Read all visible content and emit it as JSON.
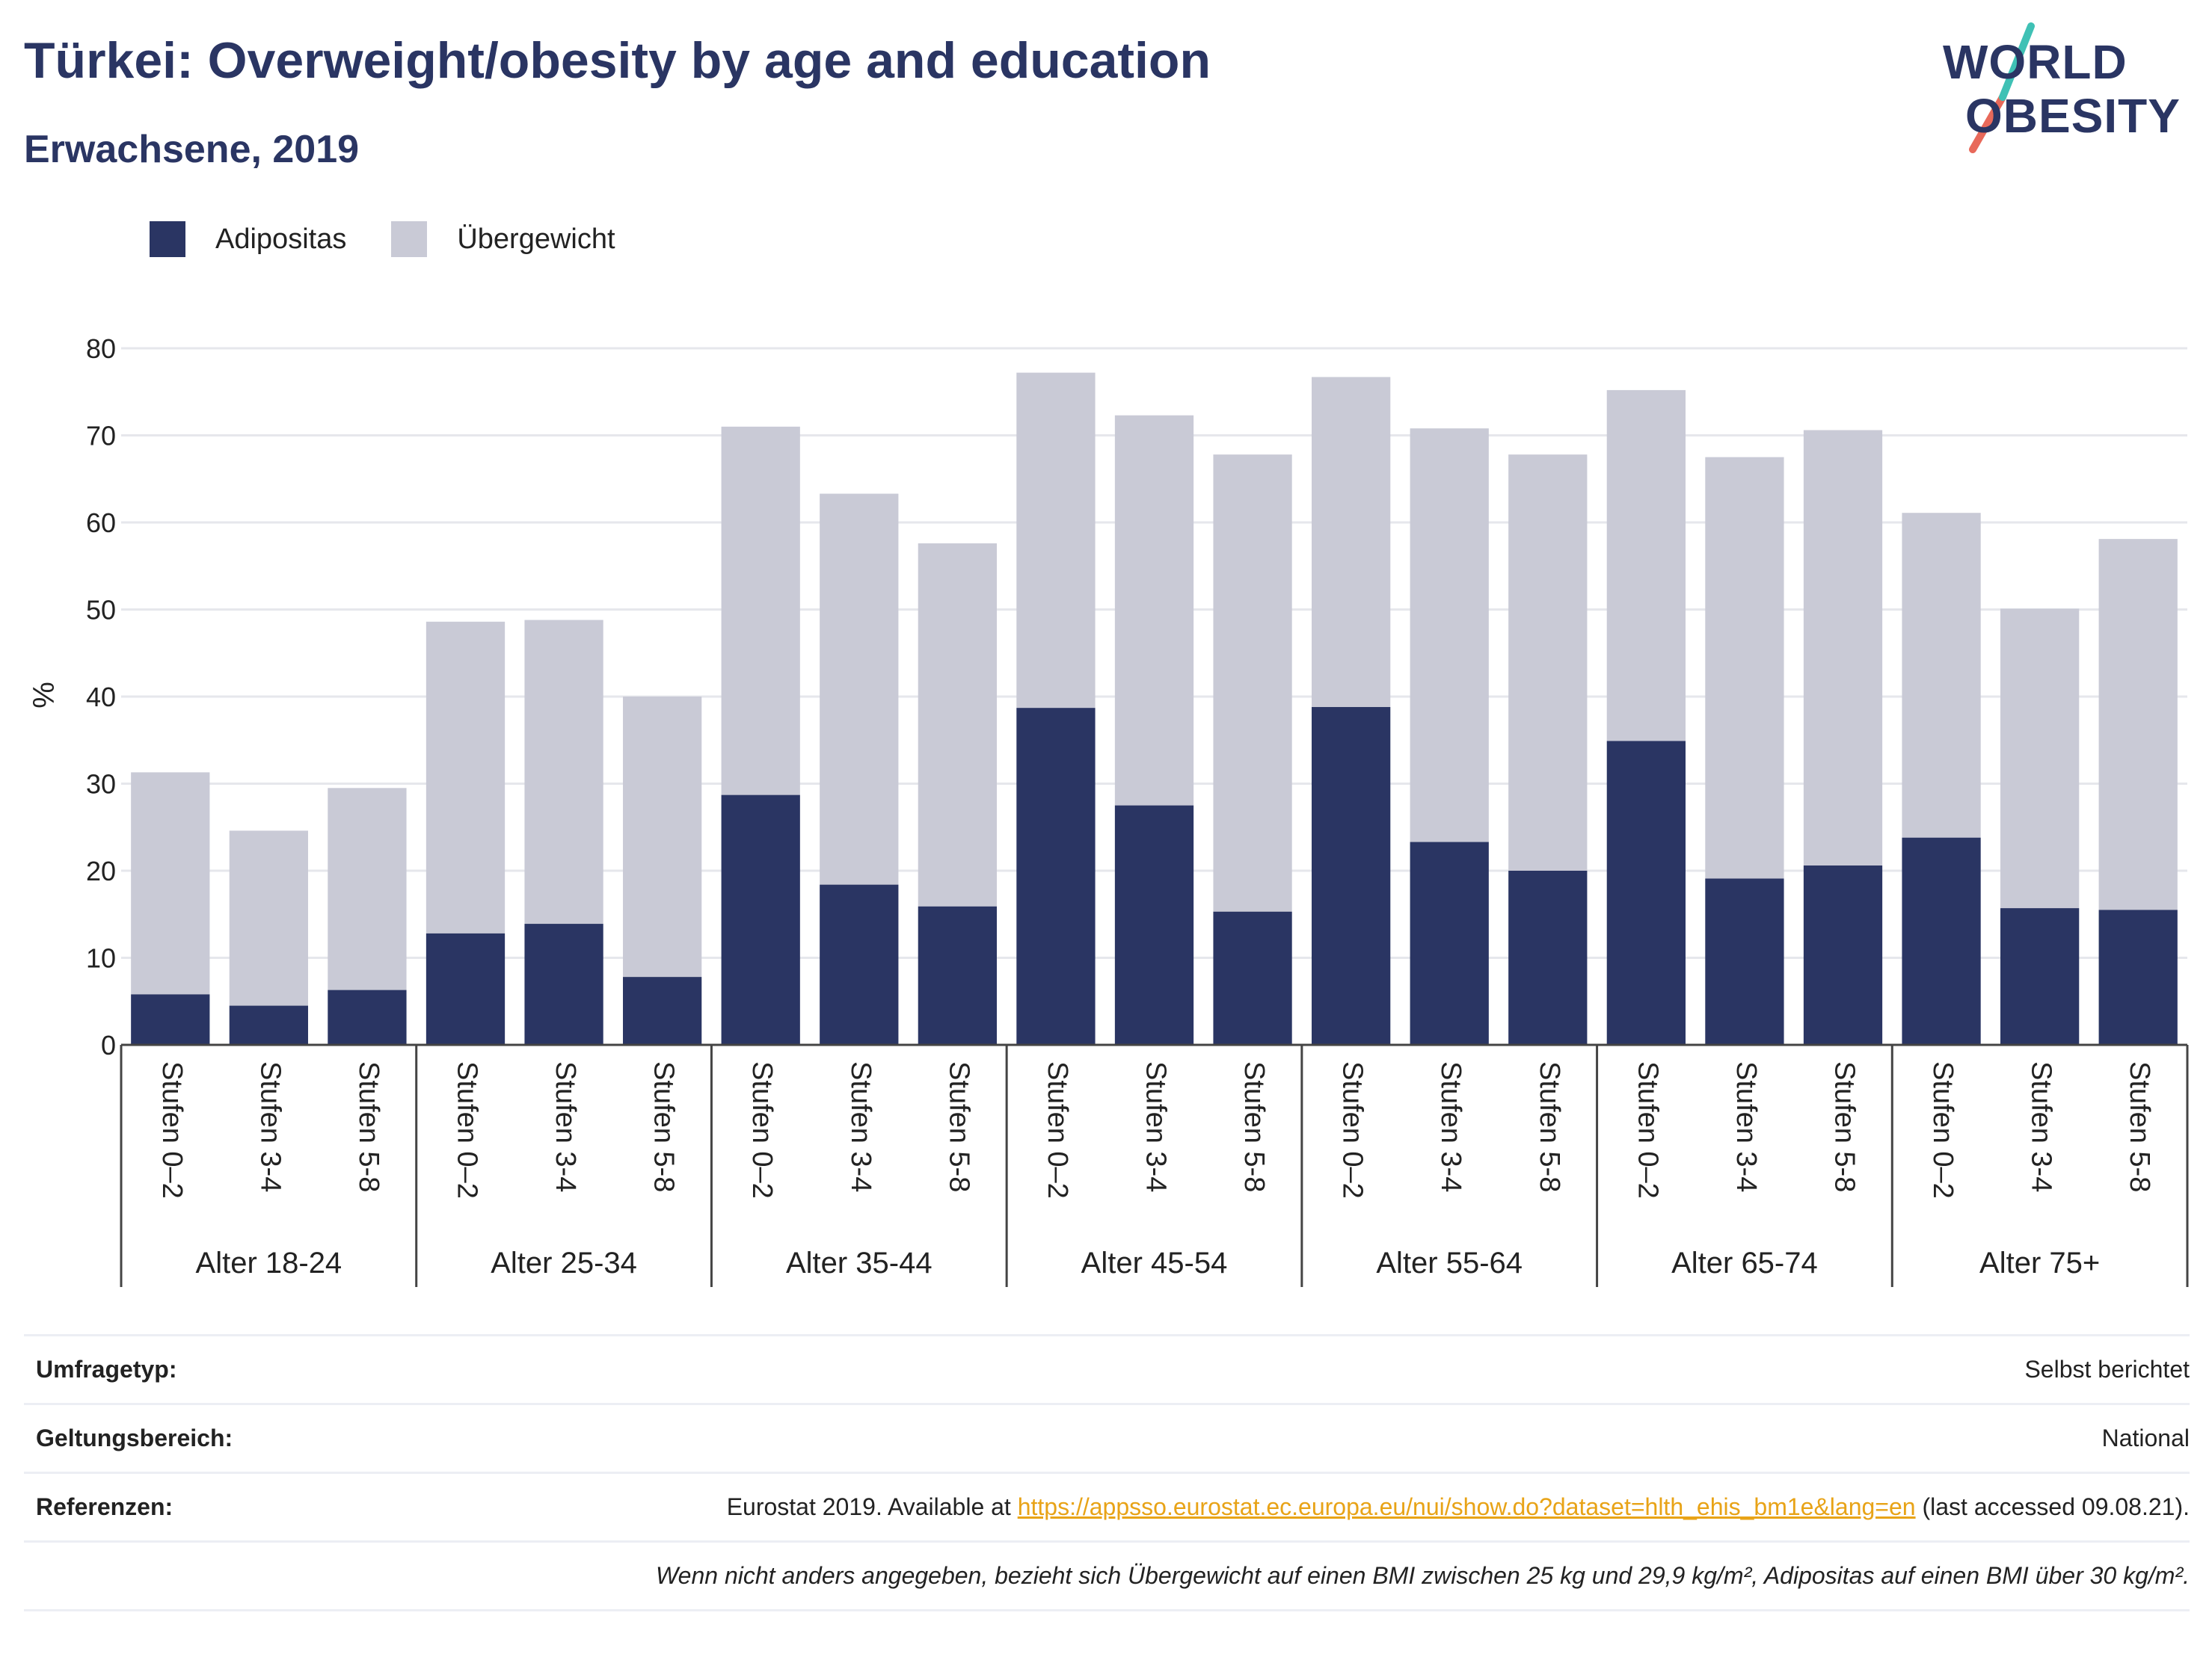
{
  "header": {
    "title": "Türkei: Overweight/obesity by age and education",
    "subtitle": "Erwachsene, 2019"
  },
  "logo": {
    "line1": "WORLD",
    "line2": "OBESITY"
  },
  "legend": [
    {
      "label": "Adipositas",
      "color": "#2a3563"
    },
    {
      "label": "Übergewicht",
      "color": "#c9cad6"
    }
  ],
  "chart_data": {
    "type": "bar",
    "stacked": true,
    "ylabel": "%",
    "ylim": [
      0,
      80
    ],
    "yticks": [
      0,
      10,
      20,
      30,
      40,
      50,
      60,
      70,
      80
    ],
    "grid": true,
    "legend_position": "top-left",
    "groups": [
      "Alter 18-24",
      "Alter 25-34",
      "Alter 35-44",
      "Alter 45-54",
      "Alter 55-64",
      "Alter 65-74",
      "Alter 75+"
    ],
    "subcategories": [
      "Stufen 0–2",
      "Stufen 3-4",
      "Stufen 5-8"
    ],
    "series": [
      {
        "name": "Adipositas",
        "color": "#2a3563",
        "values": [
          5.8,
          4.5,
          6.3,
          12.8,
          13.9,
          7.8,
          28.7,
          18.4,
          15.9,
          38.7,
          27.5,
          15.3,
          38.8,
          23.3,
          20.0,
          34.9,
          19.1,
          20.6,
          23.8,
          15.7,
          15.5
        ]
      },
      {
        "name": "Übergewicht",
        "color": "#c9cad6",
        "values": [
          25.5,
          20.1,
          23.2,
          35.8,
          34.9,
          32.2,
          42.3,
          44.9,
          41.7,
          38.5,
          44.8,
          52.5,
          37.9,
          47.5,
          47.8,
          40.3,
          48.4,
          50.0,
          37.3,
          34.4,
          42.6
        ]
      }
    ]
  },
  "footer": {
    "survey_type_label": "Umfragetyp:",
    "survey_type_value": "Selbst berichtet",
    "scope_label": "Geltungsbereich:",
    "scope_value": "National",
    "references_label": "Referenzen:",
    "references_prefix": "Eurostat 2019. Available at ",
    "references_link": "https://appsso.eurostat.ec.europa.eu/nui/show.do?dataset=hlth_ehis_bm1e&lang=en",
    "references_suffix": " (last accessed 09.08.21).",
    "note": "Wenn nicht anders angegeben, bezieht sich Übergewicht auf einen BMI zwischen 25 kg und 29,9 kg/m², Adipositas auf einen BMI über 30 kg/m²."
  }
}
